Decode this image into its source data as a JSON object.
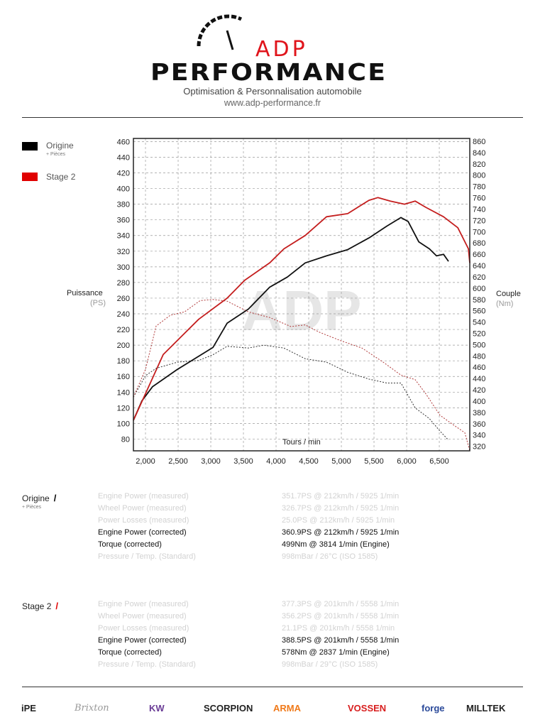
{
  "header": {
    "logo_top": "ADP",
    "logo_bottom": "PERFORMANCE",
    "subtitle": "Optimisation & Personnalisation automobile",
    "url": "www.adp-performance.fr"
  },
  "legend": [
    {
      "label": "Origine",
      "sub": "+ Pièces",
      "color": "#000000"
    },
    {
      "label": "Stage 2",
      "sub": "",
      "color": "#e00000"
    }
  ],
  "colors": {
    "origine": "#111111",
    "stage2": "#c41e1e",
    "grid": "#9a9a9a",
    "dim_text": "#d2d2d2"
  },
  "chart_data": {
    "type": "line",
    "watermark": "ADP",
    "xlabel": "Tours / min",
    "ylabel_left": "Puissance",
    "ylabel_left_unit": "(PS)",
    "ylabel_right": "Couple",
    "ylabel_right_unit": "(Nm)",
    "xlim": [
      1815,
      6967
    ],
    "ylim_left": [
      65,
      464
    ],
    "ylim_right": [
      312,
      865
    ],
    "x_ticks": [
      2000,
      2500,
      3000,
      3500,
      4000,
      4500,
      5000,
      5500,
      6000,
      6500
    ],
    "x_tick_labels": [
      "2,000",
      "2,500",
      "3,000",
      "3,500",
      "4,000",
      "4,500",
      "5,000",
      "5,500",
      "6,000",
      "6,500"
    ],
    "y_left_ticks": [
      80,
      100,
      120,
      140,
      160,
      180,
      200,
      220,
      240,
      260,
      280,
      300,
      320,
      340,
      360,
      380,
      400,
      420,
      440,
      460
    ],
    "y_right_ticks": [
      320,
      340,
      360,
      380,
      400,
      420,
      440,
      460,
      480,
      500,
      520,
      540,
      560,
      580,
      600,
      620,
      640,
      660,
      680,
      700,
      720,
      740,
      760,
      780,
      800,
      820,
      840,
      860
    ],
    "grid": true,
    "series": [
      {
        "name": "Origine power",
        "axis": "left",
        "style": "solid",
        "color": "#111111",
        "points": [
          [
            1815,
            104
          ],
          [
            1946,
            129
          ],
          [
            2109,
            147
          ],
          [
            2489,
            169
          ],
          [
            3033,
            197
          ],
          [
            3250,
            228
          ],
          [
            3576,
            246
          ],
          [
            3902,
            274
          ],
          [
            4174,
            287
          ],
          [
            4446,
            305
          ],
          [
            4772,
            314
          ],
          [
            5098,
            322
          ],
          [
            5424,
            337
          ],
          [
            5696,
            352
          ],
          [
            5913,
            363
          ],
          [
            6022,
            358
          ],
          [
            6185,
            332
          ],
          [
            6348,
            323
          ],
          [
            6457,
            314
          ],
          [
            6565,
            316
          ],
          [
            6641,
            307
          ]
        ]
      },
      {
        "name": "Stage 2 power",
        "axis": "left",
        "style": "solid",
        "color": "#c41e1e",
        "points": [
          [
            1815,
            104
          ],
          [
            2272,
            188
          ],
          [
            2489,
            206
          ],
          [
            2815,
            233
          ],
          [
            3250,
            260
          ],
          [
            3522,
            283
          ],
          [
            3902,
            305
          ],
          [
            4120,
            323
          ],
          [
            4446,
            340
          ],
          [
            4772,
            364
          ],
          [
            5098,
            368
          ],
          [
            5424,
            385
          ],
          [
            5558,
            388.5
          ],
          [
            5750,
            384
          ],
          [
            5967,
            380
          ],
          [
            6130,
            384
          ],
          [
            6293,
            376
          ],
          [
            6565,
            364
          ],
          [
            6783,
            350
          ],
          [
            6946,
            323
          ],
          [
            6967,
            305
          ]
        ]
      },
      {
        "name": "Origine torque",
        "axis": "right",
        "style": "dotted",
        "color": "#333333",
        "points": [
          [
            1815,
            407
          ],
          [
            2000,
            445
          ],
          [
            2163,
            458
          ],
          [
            2489,
            469
          ],
          [
            2815,
            472
          ],
          [
            3033,
            482
          ],
          [
            3250,
            497
          ],
          [
            3576,
            494
          ],
          [
            3814,
            499
          ],
          [
            4120,
            494
          ],
          [
            4446,
            475
          ],
          [
            4772,
            469
          ],
          [
            5098,
            451
          ],
          [
            5424,
            439
          ],
          [
            5696,
            432
          ],
          [
            5913,
            432
          ],
          [
            6130,
            388
          ],
          [
            6348,
            369
          ],
          [
            6511,
            347
          ],
          [
            6641,
            331
          ]
        ]
      },
      {
        "name": "Stage 2 torque",
        "axis": "right",
        "style": "dotted",
        "color": "#b03a3a",
        "points": [
          [
            1815,
            407
          ],
          [
            2000,
            456
          ],
          [
            2163,
            533
          ],
          [
            2380,
            552
          ],
          [
            2598,
            558
          ],
          [
            2837,
            578
          ],
          [
            3033,
            580
          ],
          [
            3250,
            577
          ],
          [
            3576,
            558
          ],
          [
            3902,
            548
          ],
          [
            4228,
            532
          ],
          [
            4446,
            535
          ],
          [
            4663,
            522
          ],
          [
            4989,
            507
          ],
          [
            5315,
            494
          ],
          [
            5641,
            469
          ],
          [
            5913,
            446
          ],
          [
            6130,
            438
          ],
          [
            6293,
            413
          ],
          [
            6511,
            375
          ],
          [
            6728,
            357
          ],
          [
            6891,
            344
          ],
          [
            6967,
            312
          ]
        ]
      }
    ]
  },
  "results": [
    {
      "name": "Origine",
      "sub": "+ Pièces",
      "color": "#000000",
      "rows": [
        {
          "label": "Engine Power (measured)",
          "value": "351.7PS @ 212km/h / 5925 1/min",
          "emph": false
        },
        {
          "label": "Wheel Power (measured)",
          "value": "326.7PS @ 212km/h / 5925 1/min",
          "emph": false
        },
        {
          "label": "Power Losses (measured)",
          "value": "25.0PS @ 212km/h / 5925 1/min",
          "emph": false
        },
        {
          "label": "Engine Power (corrected)",
          "value": "360.9PS @ 212km/h / 5925 1/min",
          "emph": true
        },
        {
          "label": "Torque (corrected)",
          "value": "499Nm @ 3814 1/min (Engine)",
          "emph": true
        },
        {
          "label": "Pressure / Temp. (Standard)",
          "value": "998mBar / 26°C    (ISO 1585)",
          "emph": false
        }
      ]
    },
    {
      "name": "Stage 2",
      "sub": "",
      "color": "#e00000",
      "rows": [
        {
          "label": "Engine Power (measured)",
          "value": "377.3PS @ 201km/h / 5558 1/min",
          "emph": false
        },
        {
          "label": "Wheel Power (measured)",
          "value": "356.2PS @ 201km/h / 5558 1/min",
          "emph": false
        },
        {
          "label": "Power Losses (measured)",
          "value": "21.1PS @ 201km/h / 5558 1/min",
          "emph": false
        },
        {
          "label": "Engine Power (corrected)",
          "value": "388.5PS @ 201km/h / 5558 1/min",
          "emph": true
        },
        {
          "label": "Torque (corrected)",
          "value": "578Nm @ 2837 1/min (Engine)",
          "emph": true
        },
        {
          "label": "Pressure / Temp. (Standard)",
          "value": "998mBar / 29°C    (ISO 1585)",
          "emph": false
        }
      ]
    }
  ],
  "sponsors": [
    "iPE",
    "Brixton",
    "KW",
    "SCORPION",
    "ARMA",
    "VOSSEN",
    "forge",
    "MILLTEK"
  ]
}
